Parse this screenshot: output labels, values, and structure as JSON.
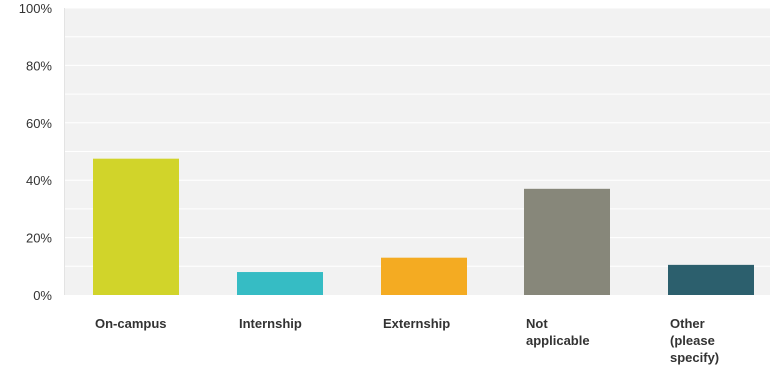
{
  "chart_data": {
    "type": "bar",
    "title": "",
    "xlabel": "",
    "ylabel": "",
    "ylim": [
      0,
      100
    ],
    "yticks": [
      "0%",
      "20%",
      "40%",
      "60%",
      "80%",
      "100%"
    ],
    "ytick_values": [
      0,
      20,
      40,
      60,
      80,
      100
    ],
    "grid": true,
    "categories": [
      "On-campus",
      "Internship",
      "Externship",
      "Not applicable",
      "Other (please specify)"
    ],
    "category_lines": [
      [
        "On-campus"
      ],
      [
        "Internship"
      ],
      [
        "Externship"
      ],
      [
        "Not",
        "applicable"
      ],
      [
        "Other",
        "(please",
        "specify)"
      ]
    ],
    "values": [
      47.5,
      8,
      13,
      37,
      10.5
    ],
    "colors": [
      "#d1d42a",
      "#36bcc4",
      "#f4ab22",
      "#87877a",
      "#2c5f6d"
    ],
    "plot_background": "#f2f2f2",
    "gridline_color": "#ffffff"
  }
}
